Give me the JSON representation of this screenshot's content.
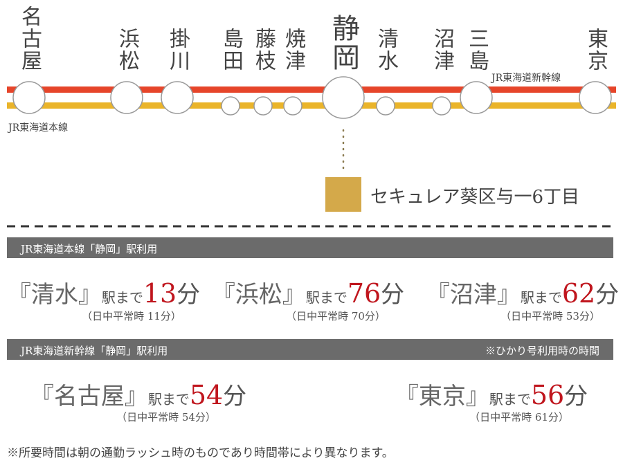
{
  "stations": [
    "名古屋",
    "浜松",
    "掛川",
    "島田",
    "藤枝",
    "焼津",
    "静岡",
    "清水",
    "沼津",
    "三島",
    "東京"
  ],
  "lines": {
    "shinkansen": "JR東海道新幹線",
    "local": "JR東海道本線"
  },
  "property": "セキュレア葵区与一6丁目",
  "sections": [
    {
      "header": "JR東海道本線「静岡」駅利用",
      "routes": [
        {
          "station": "『清水』",
          "suffix": "駅まで",
          "minutes": 13,
          "unit": "分",
          "note": "（日中平常時 11分）"
        },
        {
          "station": "『浜松』",
          "suffix": "駅まで",
          "minutes": 76,
          "unit": "分",
          "note": "（日中平常時 70分）"
        },
        {
          "station": "『沼津』",
          "suffix": "駅まで",
          "minutes": 62,
          "unit": "分",
          "note": "（日中平常時 53分）"
        }
      ]
    },
    {
      "header": "JR東海道新幹線「静岡」駅利用",
      "header_note": "※ひかり号利用時の時間",
      "routes": [
        {
          "station": "『名古屋』",
          "suffix": "駅まで",
          "minutes": 54,
          "unit": "分",
          "note": "（日中平常時 54分）"
        },
        {
          "station": "『東京』",
          "suffix": "駅まで",
          "minutes": 56,
          "unit": "分",
          "note": "（日中平常時 61分）"
        }
      ]
    }
  ],
  "footnote": "※所要時間は朝の通勤ラッシュ時のものであり時間帯により異なります。"
}
